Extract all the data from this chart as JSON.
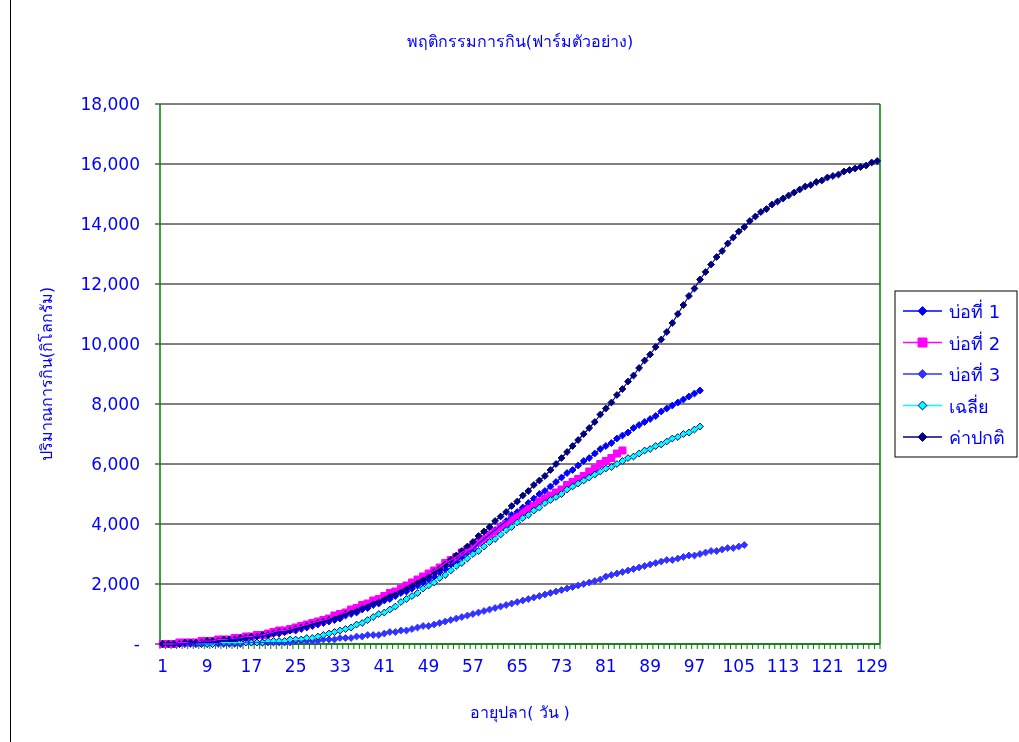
{
  "chart_data": {
    "type": "line",
    "title": "พฤติกรรมการกิน(ฟาร์มตัวอย่าง)",
    "xlabel": "อายุปลา( วัน )",
    "ylabel": "ปริมาณการกิน(กิโลกรัม)",
    "categories": [
      "1",
      null,
      null,
      null,
      null,
      null,
      null,
      null,
      "9",
      null,
      null,
      null,
      null,
      null,
      null,
      null,
      "17",
      null,
      null,
      null,
      null,
      null,
      null,
      null,
      "25",
      null,
      null,
      null,
      null,
      null,
      null,
      null,
      "33",
      null,
      null,
      null,
      null,
      null,
      null,
      null,
      "41",
      null,
      null,
      null,
      null,
      null,
      null,
      null,
      "49",
      null,
      null,
      null,
      null,
      null,
      null,
      null,
      "57",
      null,
      null,
      null,
      null,
      null,
      null,
      null,
      "65",
      null,
      null,
      null,
      null,
      null,
      null,
      null,
      "73",
      null,
      null,
      null,
      null,
      null,
      null,
      null,
      "81",
      null,
      null,
      null,
      null,
      null,
      null,
      null,
      "89",
      null,
      null,
      null,
      null,
      null,
      null,
      null,
      "97",
      null,
      null,
      null,
      null,
      null,
      null,
      null,
      "105",
      null,
      null,
      null,
      null,
      null,
      null,
      null,
      "113",
      null,
      null,
      null,
      null,
      null,
      null,
      null,
      "121",
      null,
      null,
      null,
      null,
      null,
      null,
      null,
      "129",
      null
    ],
    "ylim": [
      0,
      18000
    ],
    "yticks": [
      {
        "value": 0,
        "label": "-"
      },
      {
        "value": 2000,
        "label": "2,000"
      },
      {
        "value": 4000,
        "label": "4,000"
      },
      {
        "value": 6000,
        "label": "6,000"
      },
      {
        "value": 8000,
        "label": "8,000"
      },
      {
        "value": 10000,
        "label": "10,000"
      },
      {
        "value": 12000,
        "label": "12,000"
      },
      {
        "value": 14000,
        "label": "14,000"
      },
      {
        "value": 16000,
        "label": "16,000"
      },
      {
        "value": 18000,
        "label": "18,000"
      }
    ],
    "grid": "y",
    "legend": "right",
    "series": [
      {
        "name": "บ่อที่ 1",
        "color": "#0000ff",
        "marker": "diamond",
        "values": [
          null,
          null,
          0,
          0,
          0,
          50,
          50,
          50,
          50,
          50,
          50,
          100,
          150,
          150,
          150,
          150,
          200,
          250,
          250,
          300,
          350,
          350,
          400,
          450,
          450,
          500,
          550,
          600,
          650,
          700,
          750,
          800,
          850,
          950,
          1000,
          1050,
          1150,
          1200,
          1300,
          1350,
          1450,
          1500,
          1600,
          1700,
          1750,
          1850,
          1950,
          2050,
          2150,
          2250,
          2400,
          2500,
          2650,
          2750,
          2900,
          3050,
          3150,
          3350,
          3500,
          3650,
          3800,
          3950,
          4100,
          4300,
          4400,
          4550,
          4700,
          4850,
          5000,
          5100,
          5250,
          5400,
          5550,
          5700,
          5800,
          5950,
          6100,
          6200,
          6350,
          6500,
          6600,
          6700,
          6850,
          6950,
          7050,
          7200,
          7300,
          7400,
          7500,
          7600,
          7750,
          7850,
          7950,
          8050,
          8150,
          8250,
          8350,
          8450,
          null,
          null,
          null,
          null,
          null,
          null,
          null,
          null,
          null,
          null,
          null,
          null,
          null,
          null,
          null,
          null,
          null,
          null,
          null,
          null,
          null,
          null,
          null,
          null,
          null,
          null,
          null,
          null,
          null,
          null,
          null,
          null
        ]
      },
      {
        "name": "บ่อที่ 2",
        "color": "#ff00ff",
        "marker": "square",
        "values": [
          0,
          0,
          0,
          50,
          50,
          50,
          50,
          100,
          100,
          100,
          150,
          150,
          150,
          200,
          200,
          250,
          250,
          300,
          300,
          350,
          400,
          450,
          450,
          500,
          550,
          600,
          650,
          700,
          750,
          800,
          850,
          950,
          1000,
          1050,
          1150,
          1200,
          1300,
          1350,
          1450,
          1500,
          1600,
          1700,
          1750,
          1850,
          1950,
          2050,
          2150,
          2250,
          2350,
          2450,
          2550,
          2700,
          2800,
          2900,
          3050,
          3150,
          3250,
          3400,
          3500,
          3650,
          3750,
          3900,
          4000,
          4150,
          4250,
          4400,
          4500,
          4600,
          4750,
          4850,
          4950,
          5050,
          5150,
          5300,
          5400,
          5500,
          5600,
          5750,
          5850,
          6000,
          6100,
          6200,
          6350,
          6450,
          null,
          null,
          null,
          null,
          null,
          null,
          null,
          null,
          null,
          null,
          null,
          null,
          null,
          null,
          null,
          null,
          null,
          null,
          null,
          null,
          null,
          null,
          null,
          null,
          null,
          null,
          null,
          null,
          null,
          null,
          null,
          null,
          null,
          null,
          null,
          null,
          null,
          null,
          null,
          null,
          null,
          null,
          null,
          null,
          null,
          null
        ]
      },
      {
        "name": "บ่อที่ 3",
        "color": "#3333ff",
        "marker": "diamond",
        "values": [
          0,
          0,
          0,
          0,
          0,
          0,
          0,
          0,
          0,
          0,
          0,
          0,
          0,
          0,
          0,
          50,
          50,
          50,
          50,
          50,
          50,
          50,
          50,
          50,
          100,
          100,
          100,
          100,
          100,
          150,
          150,
          150,
          200,
          200,
          200,
          250,
          250,
          300,
          300,
          300,
          350,
          400,
          400,
          450,
          450,
          500,
          550,
          600,
          600,
          650,
          700,
          750,
          800,
          850,
          900,
          950,
          1000,
          1050,
          1100,
          1150,
          1200,
          1250,
          1300,
          1350,
          1400,
          1450,
          1500,
          1550,
          1600,
          1650,
          1700,
          1750,
          1800,
          1850,
          1900,
          1950,
          2000,
          2050,
          2100,
          2150,
          2250,
          2300,
          2350,
          2400,
          2450,
          2500,
          2550,
          2600,
          2650,
          2700,
          2750,
          2800,
          2800,
          2850,
          2900,
          2950,
          2950,
          3000,
          3050,
          3100,
          3100,
          3150,
          3200,
          3200,
          3250,
          3300,
          null,
          null,
          null,
          null,
          null,
          null,
          null,
          null,
          null,
          null,
          null,
          null,
          null,
          null,
          null,
          null,
          null,
          null,
          null,
          null,
          null,
          null,
          null,
          null
        ]
      },
      {
        "name": "เฉลี่ย",
        "color": "#00ffff",
        "marker": "diamond",
        "values": [
          null,
          null,
          null,
          null,
          null,
          null,
          0,
          0,
          0,
          0,
          50,
          50,
          50,
          50,
          50,
          50,
          50,
          50,
          50,
          100,
          100,
          100,
          100,
          150,
          150,
          150,
          200,
          200,
          250,
          300,
          350,
          400,
          450,
          500,
          550,
          650,
          700,
          800,
          900,
          1000,
          1050,
          1150,
          1250,
          1400,
          1500,
          1600,
          1700,
          1850,
          1950,
          2050,
          2200,
          2300,
          2450,
          2600,
          2700,
          2850,
          3000,
          3100,
          3250,
          3400,
          3500,
          3650,
          3800,
          3900,
          4050,
          4200,
          4300,
          4450,
          4550,
          4700,
          4800,
          4900,
          5000,
          5150,
          5250,
          5350,
          5450,
          5550,
          5650,
          5750,
          5850,
          5900,
          6000,
          6100,
          6200,
          6250,
          6350,
          6450,
          6500,
          6600,
          6650,
          6750,
          6850,
          6900,
          7000,
          7050,
          7150,
          7250,
          null,
          null,
          null,
          null,
          null,
          null,
          null,
          null,
          null,
          null,
          null,
          null,
          null,
          null,
          null,
          null,
          null,
          null,
          null,
          null,
          null,
          null,
          null,
          null,
          null,
          null,
          null,
          null,
          null,
          null,
          null,
          null
        ]
      },
      {
        "name": "ค่าปกติ",
        "color": "#000080",
        "marker": "diamond",
        "values": [
          0,
          0,
          0,
          0,
          50,
          50,
          50,
          50,
          100,
          100,
          100,
          150,
          150,
          150,
          200,
          200,
          250,
          250,
          300,
          300,
          350,
          400,
          400,
          450,
          500,
          550,
          600,
          650,
          700,
          750,
          800,
          850,
          900,
          1000,
          1050,
          1100,
          1200,
          1250,
          1350,
          1400,
          1500,
          1600,
          1650,
          1750,
          1850,
          1950,
          2050,
          2150,
          2250,
          2400,
          2500,
          2650,
          2800,
          2950,
          3100,
          3250,
          3400,
          3600,
          3750,
          3900,
          4100,
          4250,
          4400,
          4600,
          4750,
          4950,
          5100,
          5300,
          5450,
          5600,
          5800,
          6000,
          6200,
          6400,
          6600,
          6800,
          7000,
          7200,
          7400,
          7650,
          7850,
          8050,
          8300,
          8500,
          8750,
          8950,
          9200,
          9450,
          9650,
          9900,
          10150,
          10400,
          10700,
          11000,
          11300,
          11600,
          11850,
          12150,
          12400,
          12650,
          12900,
          13100,
          13350,
          13550,
          13750,
          13900,
          14100,
          14250,
          14400,
          14500,
          14650,
          14750,
          14850,
          14950,
          15050,
          15150,
          15250,
          15300,
          15400,
          15450,
          15550,
          15600,
          15650,
          15750,
          15800,
          15850,
          15900,
          15950,
          16050,
          16100
        ]
      }
    ]
  }
}
